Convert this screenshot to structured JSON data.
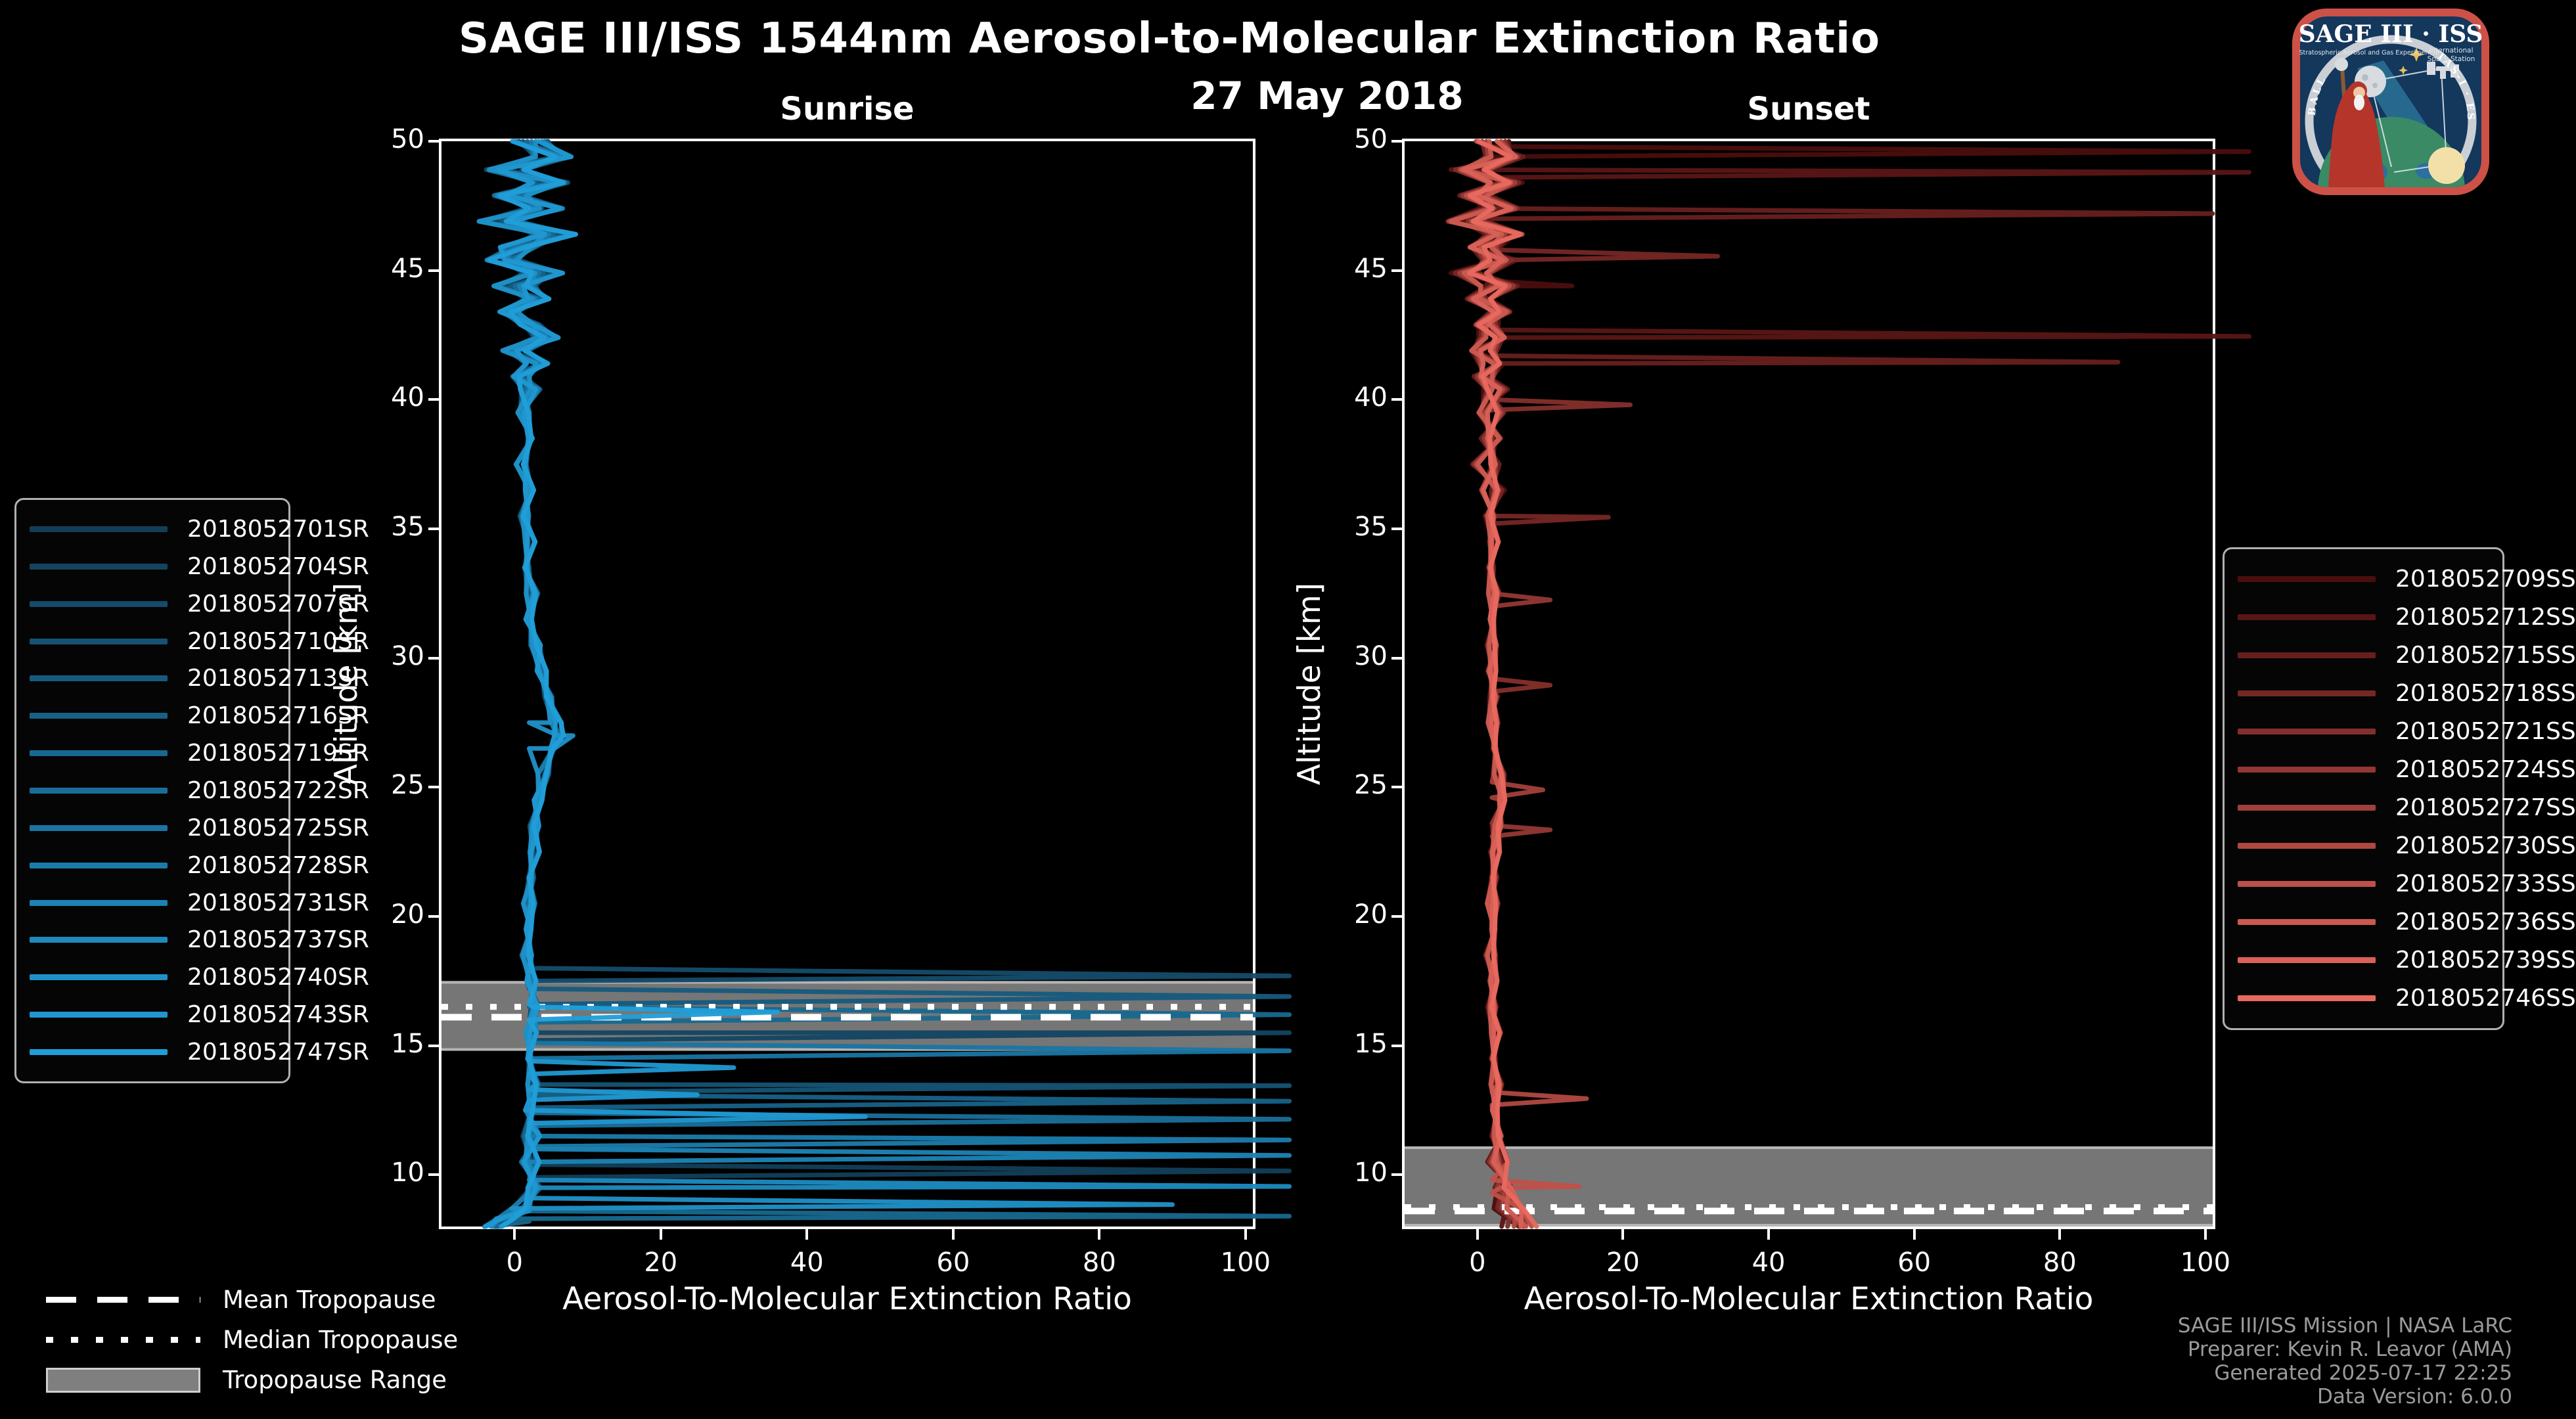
{
  "header": {
    "title": "SAGE III/ISS 1544nm Aerosol-to-Molecular Extinction Ratio",
    "date": "27 May 2018"
  },
  "logo": {
    "name": "SAGE III ISS mission patch",
    "title": "SAGE III · ISS",
    "sub_left": "Stratospheric Aerosol and Gas Experiment III",
    "sub_right_1": "International",
    "sub_right_2": "Space Station",
    "ring_left": "BALL",
    "ring_right": "TAS-I · ESA"
  },
  "footer": {
    "credit_lines": [
      "SAGE III/ISS Mission | NASA LaRC",
      "Preparer: Kevin R. Leavor (AMA)",
      "Generated 2025-07-17 22:25",
      "Data Version: 6.0.0"
    ]
  },
  "tropopause_legend": {
    "items": [
      {
        "label": "Mean Tropopause",
        "style": "dashed"
      },
      {
        "label": "Median Tropopause",
        "style": "dotted"
      },
      {
        "label": "Tropopause Range",
        "style": "band"
      }
    ]
  },
  "colors": {
    "background": "#000000",
    "text": "#ffffff",
    "credit_text": "#9a9a9a",
    "axes_spine": "#ffffff",
    "legend_border": "#b0b0b0",
    "tropopause_band": "#7f7f7f",
    "tropopause_band_edge": "#b5b5b5",
    "tropopause_line": "#ffffff"
  },
  "chart_data": [
    {
      "type": "line",
      "panel": "sunrise",
      "title": "Sunrise",
      "xlabel": "Aerosol-To-Molecular Extinction Ratio",
      "ylabel": "Altitude [km]",
      "xlim": [
        -10,
        101
      ],
      "ylim": [
        8,
        50
      ],
      "xticks": [
        0,
        20,
        40,
        60,
        80,
        100
      ],
      "yticks": [
        10,
        15,
        20,
        25,
        30,
        35,
        40,
        45,
        50
      ],
      "grid": false,
      "legend_position": "outside-left",
      "events": [
        {
          "id": "2018052701SR",
          "color": "#123E58"
        },
        {
          "id": "2018052704SR",
          "color": "#134561"
        },
        {
          "id": "2018052707SR",
          "color": "#144C6A"
        },
        {
          "id": "2018052710SR",
          "color": "#155374"
        },
        {
          "id": "2018052713SR",
          "color": "#165A7D"
        },
        {
          "id": "2018052716SR",
          "color": "#176186"
        },
        {
          "id": "2018052719SR",
          "color": "#18688F"
        },
        {
          "id": "2018052722SR",
          "color": "#196E99"
        },
        {
          "id": "2018052725SR",
          "color": "#1A75A2"
        },
        {
          "id": "2018052728SR",
          "color": "#1B7CAB"
        },
        {
          "id": "2018052731SR",
          "color": "#1C83B4"
        },
        {
          "id": "2018052737SR",
          "color": "#1D8ABE"
        },
        {
          "id": "2018052740SR",
          "color": "#1E91C7"
        },
        {
          "id": "2018052743SR",
          "color": "#1F97D0"
        },
        {
          "id": "2018052747SR",
          "color": "#209ED9"
        }
      ],
      "tropopause": {
        "mean_km": 16.1,
        "median_km": 16.5,
        "range_km": [
          14.8,
          17.5
        ]
      },
      "base_profile": [
        [
          50,
          2
        ],
        [
          49.4,
          5.5
        ],
        [
          48.9,
          -1.5
        ],
        [
          48.4,
          5
        ],
        [
          47.9,
          -0.5
        ],
        [
          47.4,
          4
        ],
        [
          46.9,
          -2
        ],
        [
          46.4,
          5.5
        ],
        [
          45.9,
          0.5
        ],
        [
          45.4,
          -1.5
        ],
        [
          44.9,
          4
        ],
        [
          44.4,
          0
        ],
        [
          43.9,
          3
        ],
        [
          43.4,
          -0.8
        ],
        [
          42.9,
          2
        ],
        [
          42.4,
          4.5
        ],
        [
          41.9,
          0
        ],
        [
          41.4,
          3
        ],
        [
          40.9,
          0.8
        ],
        [
          40.4,
          2
        ],
        [
          39.5,
          1.2
        ],
        [
          38.5,
          2.2
        ],
        [
          37.5,
          1
        ],
        [
          36.5,
          2
        ],
        [
          35.5,
          1.4
        ],
        [
          34.5,
          2
        ],
        [
          33.5,
          1.6
        ],
        [
          32.5,
          2.4
        ],
        [
          31.5,
          2
        ],
        [
          30.5,
          3
        ],
        [
          29.5,
          3.6
        ],
        [
          28.5,
          4.6
        ],
        [
          27.5,
          5.6
        ],
        [
          27,
          6
        ],
        [
          26.5,
          5.2
        ],
        [
          25.5,
          4
        ],
        [
          24.5,
          3.2
        ],
        [
          23.5,
          2.8
        ],
        [
          22.5,
          2.6
        ],
        [
          21.5,
          2.2
        ],
        [
          20.5,
          2
        ],
        [
          19.5,
          2
        ],
        [
          18.5,
          1.8
        ],
        [
          17.5,
          2.2
        ],
        [
          16.5,
          2.8
        ],
        [
          15.5,
          2.2
        ],
        [
          14.5,
          2
        ],
        [
          13.5,
          2.6
        ],
        [
          12.5,
          2
        ],
        [
          11.5,
          2.4
        ],
        [
          10.5,
          2
        ],
        [
          9.5,
          2.6
        ],
        [
          8.7,
          1
        ],
        [
          8.3,
          -1.5
        ],
        [
          8,
          -3
        ]
      ],
      "cloud_spikes": [
        [
          2,
          18.0,
          106,
          17.4
        ],
        [
          4,
          17.2,
          106,
          16.6
        ],
        [
          14,
          16.6,
          36,
          16.0
        ],
        [
          6,
          16.5,
          106,
          15.9
        ],
        [
          1,
          15.8,
          106,
          15.2
        ],
        [
          8,
          15.1,
          106,
          14.5
        ],
        [
          13,
          14.4,
          30,
          13.9
        ],
        [
          3,
          13.7,
          106,
          13.2
        ],
        [
          13,
          13.3,
          25,
          12.9
        ],
        [
          5,
          13.1,
          106,
          12.6
        ],
        [
          13,
          12.5,
          48,
          12.0
        ],
        [
          7,
          12.4,
          106,
          11.9
        ],
        [
          9,
          11.6,
          106,
          11.1
        ],
        [
          10,
          11.0,
          106,
          10.5
        ],
        [
          0,
          10.4,
          106,
          9.9
        ],
        [
          11,
          9.8,
          106,
          9.3
        ],
        [
          12,
          9.1,
          90,
          8.6
        ],
        [
          6,
          8.6,
          106,
          8.2
        ],
        [
          12,
          27.5,
          8,
          26.5
        ]
      ]
    },
    {
      "type": "line",
      "panel": "sunset",
      "title": "Sunset",
      "xlabel": "Aerosol-To-Molecular Extinction Ratio",
      "ylabel": "Altitude [km]",
      "xlim": [
        -10,
        101
      ],
      "ylim": [
        8,
        50
      ],
      "xticks": [
        0,
        20,
        40,
        60,
        80,
        100
      ],
      "yticks": [
        10,
        15,
        20,
        25,
        30,
        35,
        40,
        45,
        50
      ],
      "grid": false,
      "legend_position": "outside-right",
      "events": [
        {
          "id": "2018052709SS",
          "color": "#4A0E0E"
        },
        {
          "id": "2018052712SS",
          "color": "#581615"
        },
        {
          "id": "2018052715SS",
          "color": "#671F1D"
        },
        {
          "id": "2018052718SS",
          "color": "#752724"
        },
        {
          "id": "2018052721SS",
          "color": "#832F2B"
        },
        {
          "id": "2018052724SS",
          "color": "#923733"
        },
        {
          "id": "2018052727SS",
          "color": "#A0403A"
        },
        {
          "id": "2018052730SS",
          "color": "#AE4841"
        },
        {
          "id": "2018052733SS",
          "color": "#BD5049"
        },
        {
          "id": "2018052736SS",
          "color": "#CB5950"
        },
        {
          "id": "2018052739SS",
          "color": "#D96158"
        },
        {
          "id": "2018052746SS",
          "color": "#E8695F"
        }
      ],
      "tropopause": {
        "mean_km": 8.6,
        "median_km": 8.75,
        "range_km": [
          8.0,
          11.1
        ]
      },
      "base_profile": [
        [
          50,
          1.5
        ],
        [
          49.4,
          4
        ],
        [
          48.9,
          -1
        ],
        [
          48.4,
          3.5
        ],
        [
          47.9,
          0
        ],
        [
          47.4,
          3
        ],
        [
          46.9,
          -1.5
        ],
        [
          46.4,
          4
        ],
        [
          45.9,
          0.5
        ],
        [
          45.4,
          3
        ],
        [
          44.9,
          -0.5
        ],
        [
          44.4,
          2.5
        ],
        [
          43.9,
          0.5
        ],
        [
          43.4,
          3
        ],
        [
          42.9,
          1
        ],
        [
          42.4,
          2.5
        ],
        [
          41.9,
          0.5
        ],
        [
          41.4,
          2
        ],
        [
          40.9,
          1
        ],
        [
          40.4,
          2.2
        ],
        [
          39.5,
          1.5
        ],
        [
          38.5,
          2
        ],
        [
          37.5,
          1.5
        ],
        [
          36.5,
          2
        ],
        [
          35.5,
          1.8
        ],
        [
          34.5,
          2.2
        ],
        [
          33.5,
          1.8
        ],
        [
          32.5,
          2.2
        ],
        [
          31.5,
          2
        ],
        [
          30.5,
          2.2
        ],
        [
          29.5,
          2
        ],
        [
          28.5,
          2.2
        ],
        [
          27.5,
          2
        ],
        [
          26.5,
          2.4
        ],
        [
          25.5,
          3
        ],
        [
          24.5,
          3.4
        ],
        [
          23.5,
          2.8
        ],
        [
          22.5,
          2.4
        ],
        [
          21.5,
          2.2
        ],
        [
          20.5,
          2
        ],
        [
          19.5,
          2.2
        ],
        [
          18.5,
          2
        ],
        [
          17.5,
          2.2
        ],
        [
          16.5,
          2
        ],
        [
          15.5,
          2.4
        ],
        [
          14.5,
          2.2
        ],
        [
          13.5,
          2.6
        ],
        [
          12.5,
          2.4
        ],
        [
          11.5,
          2.8
        ],
        [
          10.5,
          3
        ],
        [
          9.5,
          3.6
        ],
        [
          8.7,
          4.5
        ],
        [
          8,
          5.5
        ]
      ],
      "cloud_spikes": [
        [
          0,
          49.8,
          106,
          49.4
        ],
        [
          1,
          49.0,
          106,
          48.6
        ],
        [
          2,
          47.4,
          101,
          47.0
        ],
        [
          3,
          45.8,
          33,
          45.3
        ],
        [
          0,
          44.6,
          13,
          44.2
        ],
        [
          1,
          42.7,
          106,
          42.2
        ],
        [
          2,
          41.7,
          88,
          41.2
        ],
        [
          4,
          40.0,
          21,
          39.6
        ],
        [
          3,
          35.7,
          18,
          35.2
        ],
        [
          5,
          32.5,
          10,
          32.0
        ],
        [
          4,
          29.2,
          10,
          28.7
        ],
        [
          6,
          25.2,
          9,
          24.6
        ],
        [
          5,
          23.6,
          10,
          23.1
        ],
        [
          7,
          13.2,
          15,
          12.7
        ],
        [
          8,
          9.8,
          14,
          9.3
        ]
      ]
    }
  ]
}
